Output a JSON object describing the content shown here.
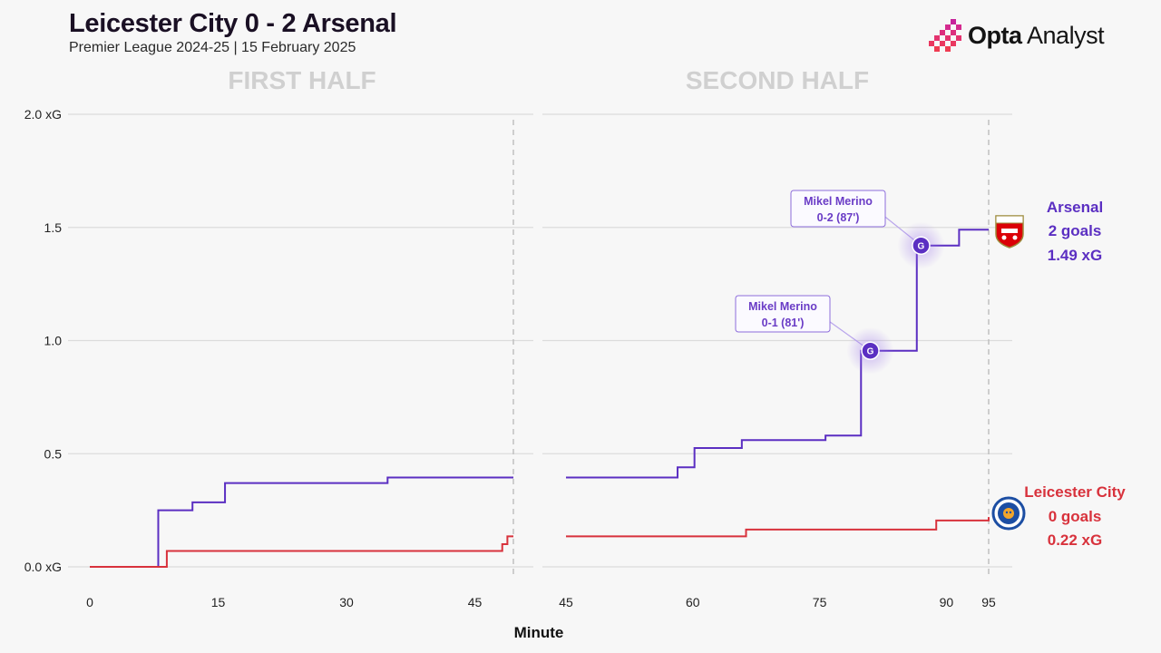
{
  "header": {
    "title": "Leicester City 0 - 2 Arsenal",
    "subtitle": "Premier League 2024-25 | 15 February 2025",
    "brand": {
      "strong": "Opta",
      "light": " Analyst"
    }
  },
  "colors": {
    "arsenal": "#5b2fc2",
    "leicester": "#d8323c",
    "grid": "#dcdcdc",
    "half_title": "#d0d0d0",
    "background": "#f7f7f7"
  },
  "chart_data": {
    "type": "line",
    "step": true,
    "xlabel": "Minute",
    "ylabel": "xG",
    "ylim": [
      0,
      2.0
    ],
    "yticks": [
      {
        "value": 0.0,
        "label": "0.0 xG"
      },
      {
        "value": 0.5,
        "label": "0.5"
      },
      {
        "value": 1.0,
        "label": "1.0"
      },
      {
        "value": 1.5,
        "label": "1.5"
      },
      {
        "value": 2.0,
        "label": "2.0 xG"
      }
    ],
    "panels": [
      {
        "title": "FIRST HALF",
        "xlim": [
          0,
          49.5
        ],
        "xticks": [
          0,
          15,
          30,
          45
        ],
        "end_marker": 49.5
      },
      {
        "title": "SECOND HALF",
        "xlim": [
          45,
          95
        ],
        "xticks": [
          45,
          60,
          75,
          90,
          95
        ],
        "end_marker": 95
      }
    ],
    "series": [
      {
        "name": "Arsenal",
        "team": "arsenal",
        "summary": [
          "Arsenal",
          "2 goals",
          "1.49 xG"
        ],
        "first_half": [
          [
            0,
            0.0
          ],
          [
            8,
            0.25
          ],
          [
            12,
            0.285
          ],
          [
            15.8,
            0.37
          ],
          [
            34.8,
            0.395
          ],
          [
            49.5,
            0.395
          ]
        ],
        "second_half": [
          [
            45,
            0.395
          ],
          [
            58.2,
            0.44
          ],
          [
            60.2,
            0.525
          ],
          [
            65.8,
            0.56
          ],
          [
            75.7,
            0.58
          ],
          [
            79.9,
            0.955
          ],
          [
            86.5,
            1.42
          ],
          [
            91.5,
            1.49
          ],
          [
            95,
            1.49
          ]
        ]
      },
      {
        "name": "Leicester City",
        "team": "leicester",
        "summary": [
          "Leicester City",
          "0 goals",
          "0.22 xG"
        ],
        "first_half": [
          [
            0,
            0.0
          ],
          [
            9,
            0.07
          ],
          [
            48.2,
            0.1
          ],
          [
            48.8,
            0.135
          ],
          [
            49.5,
            0.135
          ]
        ],
        "second_half": [
          [
            45,
            0.135
          ],
          [
            66.3,
            0.165
          ],
          [
            88.8,
            0.205
          ],
          [
            95,
            0.22
          ]
        ]
      }
    ],
    "goals": [
      {
        "team": "arsenal",
        "minute": 81,
        "xg": 0.955,
        "label": "G",
        "player": "Mikel Merino",
        "score": "0-1 (81')"
      },
      {
        "team": "arsenal",
        "minute": 87,
        "xg": 1.42,
        "label": "G",
        "player": "Mikel Merino",
        "score": "0-2 (87')"
      }
    ]
  }
}
